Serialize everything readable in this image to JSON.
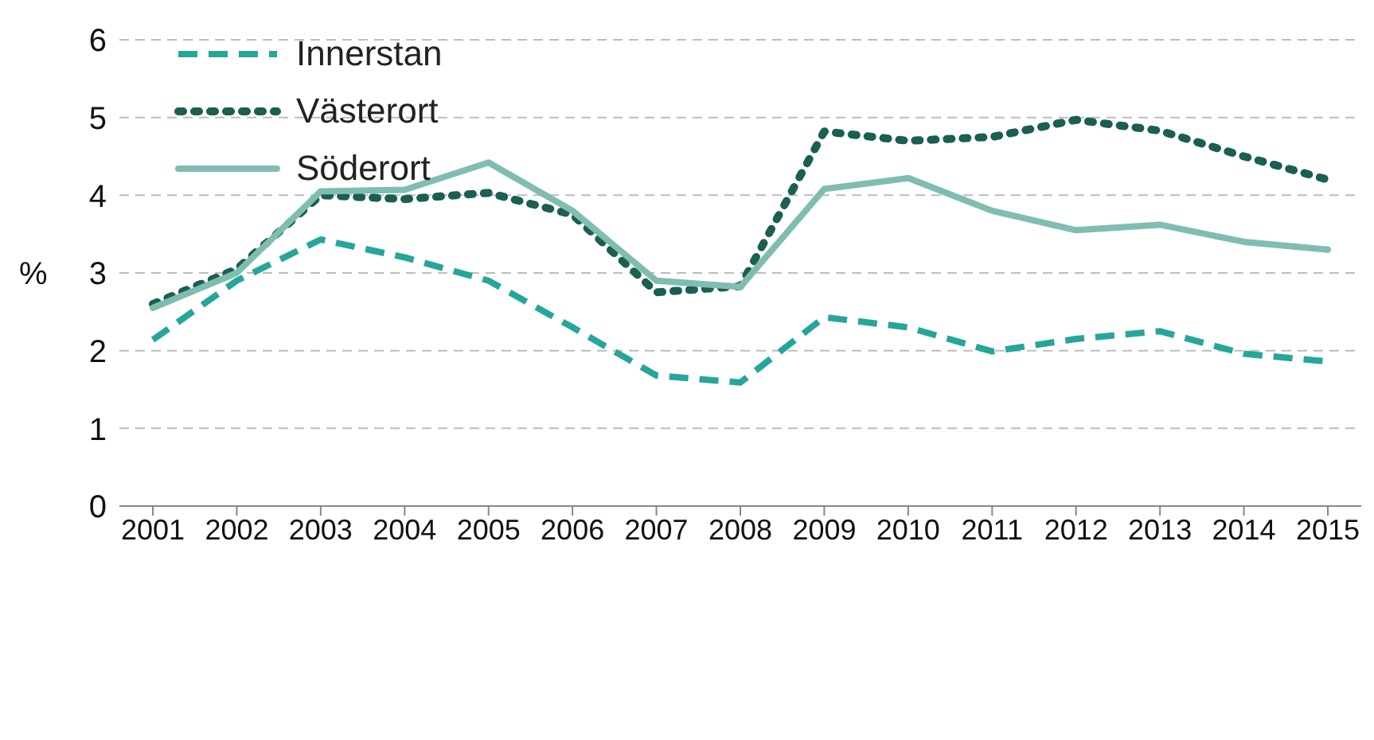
{
  "chart_data": {
    "type": "line",
    "ylabel": "%",
    "categories": [
      "2001",
      "2002",
      "2003",
      "2004",
      "2005",
      "2006",
      "2007",
      "2008",
      "2009",
      "2010",
      "2011",
      "2012",
      "2013",
      "2014",
      "2015"
    ],
    "series": [
      {
        "name": "Innerstan",
        "color": "#26a69a",
        "line_style": "dashed",
        "values": [
          2.14,
          2.9,
          3.43,
          3.2,
          2.9,
          2.3,
          1.68,
          1.59,
          2.43,
          2.3,
          1.99,
          2.15,
          2.25,
          1.96,
          1.86
        ]
      },
      {
        "name": "Västerort",
        "color": "#1b5e52",
        "line_style": "dotted",
        "values": [
          2.6,
          3.05,
          4.0,
          3.95,
          4.03,
          3.75,
          2.75,
          2.83,
          4.82,
          4.7,
          4.75,
          4.97,
          4.83,
          4.5,
          4.2
        ]
      },
      {
        "name": "Söderort",
        "color": "#80bdb1",
        "line_style": "solid",
        "values": [
          2.55,
          3.0,
          4.05,
          4.07,
          4.42,
          3.8,
          2.9,
          2.82,
          4.08,
          4.22,
          3.8,
          3.55,
          3.62,
          3.4,
          3.3
        ]
      }
    ],
    "ylim": [
      0,
      6
    ],
    "yticks": [
      0,
      1,
      2,
      3,
      4,
      5,
      6
    ],
    "grid": "y",
    "legend": "top left",
    "marker": "none"
  }
}
